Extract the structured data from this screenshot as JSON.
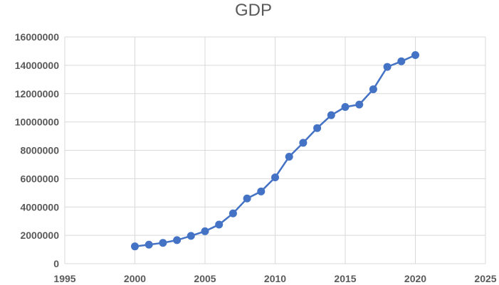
{
  "chart_data": {
    "type": "scatter",
    "title": "GDP",
    "xlabel": "",
    "ylabel": "",
    "xlim": [
      1995,
      2025
    ],
    "ylim": [
      0,
      16000000
    ],
    "x_ticks": [
      "1995",
      "2000",
      "2005",
      "2010",
      "2015",
      "2020",
      "2025"
    ],
    "y_ticks": [
      "0",
      "2000000",
      "4000000",
      "6000000",
      "8000000",
      "10000000",
      "12000000",
      "14000000",
      "16000000"
    ],
    "grid": "vertical and horizontal",
    "legend": "none",
    "series": [
      {
        "color": "#4472c4",
        "style": "lines-with-markers",
        "x": [
          2000,
          2001,
          2002,
          2003,
          2004,
          2005,
          2006,
          2007,
          2008,
          2009,
          2010,
          2011,
          2012,
          2013,
          2014,
          2015,
          2016,
          2017,
          2018,
          2019,
          2020
        ],
        "y": [
          1220000,
          1340000,
          1470000,
          1660000,
          1960000,
          2290000,
          2760000,
          3550000,
          4600000,
          5100000,
          6090000,
          7550000,
          8530000,
          9570000,
          10480000,
          11060000,
          11230000,
          12310000,
          13890000,
          14280000,
          14720000
        ]
      }
    ]
  }
}
